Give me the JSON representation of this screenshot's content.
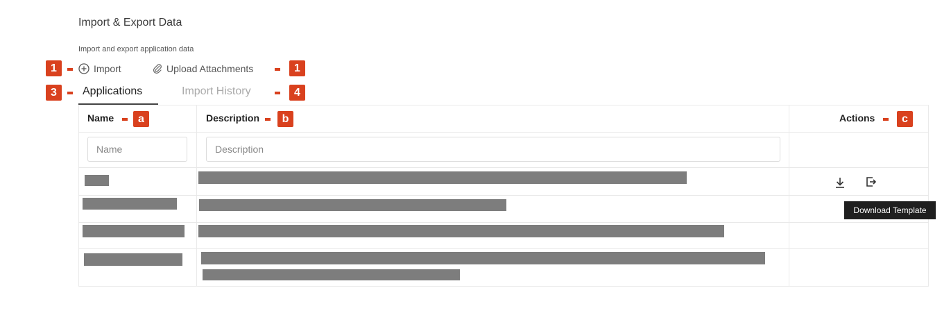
{
  "page": {
    "title": "Import & Export Data",
    "subtitle": "Import and export application data"
  },
  "toolbar": {
    "import_label": "Import",
    "upload_label": "Upload Attachments"
  },
  "tabs": [
    {
      "label": "Applications",
      "active": true
    },
    {
      "label": "Import History",
      "active": false
    }
  ],
  "table": {
    "headers": {
      "name": "Name",
      "description": "Description",
      "actions": "Actions"
    },
    "filters": {
      "name_placeholder": "Name",
      "description_placeholder": "Description"
    },
    "rows": [
      {
        "name": "",
        "description": "",
        "redacted": true
      },
      {
        "name": "",
        "description": "",
        "redacted": true
      },
      {
        "name": "",
        "description": "",
        "redacted": true
      },
      {
        "name": "",
        "description": "",
        "redacted": true
      }
    ],
    "row_actions": [
      "download-icon",
      "export-icon"
    ]
  },
  "tooltip": {
    "text": "Download Template"
  },
  "annotations": {
    "badge_import": "1",
    "badge_upload": "1",
    "badge_applications": "3",
    "badge_history": "4",
    "badge_name": "a",
    "badge_description": "b",
    "badge_actions": "c"
  },
  "colors": {
    "badge": "#d9411e",
    "redaction": "#7d7d7d",
    "tooltip_bg": "#1f1f1f"
  }
}
